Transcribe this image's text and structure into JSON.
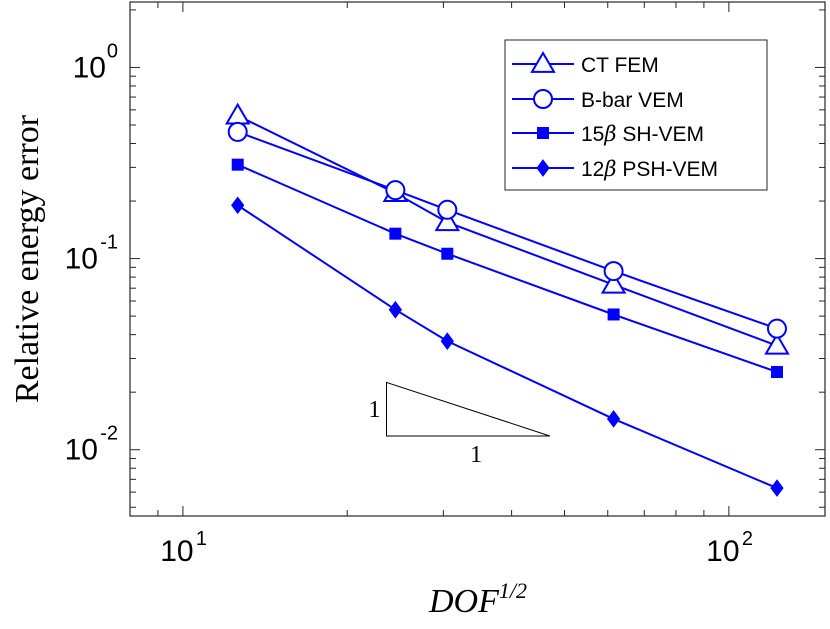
{
  "chart_data": {
    "type": "line",
    "xscale": "log",
    "yscale": "log",
    "xlim": [
      8,
      150
    ],
    "ylim": [
      0.0045,
      2.2
    ],
    "xlabel_main": "DOF",
    "xlabel_sup": "1/2",
    "ylabel": "Relative energy error",
    "x_ticks": [
      {
        "value": 10,
        "base": "10",
        "exp": "1"
      },
      {
        "value": 100,
        "base": "10",
        "exp": "2"
      }
    ],
    "y_ticks": [
      {
        "value": 1,
        "base": "10",
        "exp": "0"
      },
      {
        "value": 0.1,
        "base": "10",
        "exp": "-1"
      },
      {
        "value": 0.01,
        "base": "10",
        "exp": "-2"
      }
    ],
    "legend_position": "top-right",
    "series": [
      {
        "name": "CT FEM",
        "prefix": "",
        "symbol": "",
        "suffix": "CT FEM",
        "marker": "triangle",
        "color": "#0000ff",
        "x": [
          12.6,
          24.5,
          30.5,
          61.5,
          122.5
        ],
        "y": [
          0.56,
          0.22,
          0.155,
          0.073,
          0.035
        ]
      },
      {
        "name": "B-bar VEM",
        "prefix": "",
        "symbol": "",
        "suffix": "B-bar VEM",
        "marker": "circle",
        "color": "#0000ff",
        "x": [
          12.6,
          24.5,
          30.5,
          61.5,
          122.5
        ],
        "y": [
          0.46,
          0.228,
          0.18,
          0.086,
          0.043
        ]
      },
      {
        "name": "15β SH-VEM",
        "prefix": "15",
        "symbol": "β",
        "suffix": " SH-VEM",
        "marker": "square",
        "color": "#0000ff",
        "x": [
          12.6,
          24.5,
          30.5,
          61.5,
          122.5
        ],
        "y": [
          0.31,
          0.135,
          0.106,
          0.051,
          0.0255
        ]
      },
      {
        "name": "12β PSH-VEM",
        "prefix": "12",
        "symbol": "β",
        "suffix": " PSH-VEM",
        "marker": "diamond",
        "color": "#0000ff",
        "x": [
          12.6,
          24.5,
          30.5,
          61.5,
          122.5
        ],
        "y": [
          0.19,
          0.054,
          0.037,
          0.0145,
          0.0063
        ]
      }
    ],
    "slope_triangle": {
      "x_start": 23.6,
      "x_end": 47,
      "y_top": 0.0225,
      "y_bottom": 0.0118,
      "rise_label": "1",
      "run_label": "1",
      "color": "#000000"
    }
  }
}
